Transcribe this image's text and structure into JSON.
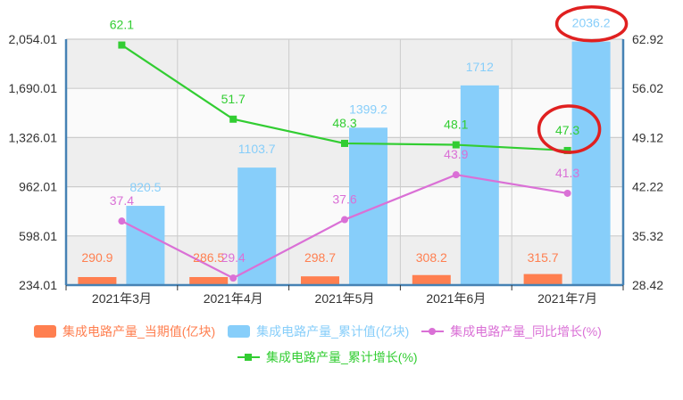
{
  "colors": {
    "current": "#ff7f50",
    "cumulative": "#87cefa",
    "yoy": "#da70d6",
    "cum_growth": "#32cd32",
    "axis": "#4682b4",
    "grid": "#cccccc",
    "band_dark": "#eeeeee",
    "band_light": "#fafafa",
    "highlight": "#e02020",
    "tick_text": "#333333"
  },
  "chart_data": {
    "type": "bar",
    "title": "",
    "categories": [
      "2021年3月",
      "2021年4月",
      "2021年5月",
      "2021年6月",
      "2021年7月"
    ],
    "series": [
      {
        "name": "集成电路产量_当期值(亿块)",
        "type": "bar",
        "axis": "left",
        "values": [
          290.9,
          286.5,
          298.7,
          308.2,
          315.7
        ]
      },
      {
        "name": "集成电路产量_累计值(亿块)",
        "type": "bar",
        "axis": "left",
        "values": [
          820.5,
          1103.7,
          1399.2,
          1712,
          2036.2
        ]
      },
      {
        "name": "集成电路产量_同比增长(%)",
        "type": "line",
        "axis": "right",
        "marker": "circle",
        "values": [
          37.4,
          29.4,
          37.6,
          43.9,
          41.3
        ]
      },
      {
        "name": "集成电路产量_累计增长(%)",
        "type": "line",
        "axis": "right",
        "marker": "square",
        "values": [
          62.1,
          51.7,
          48.3,
          48.1,
          47.3
        ]
      }
    ],
    "y_left": {
      "ylim": [
        234.01,
        2054.01
      ],
      "ticks": [
        "234.01",
        "598.01",
        "962.01",
        "1,326.01",
        "1,690.01",
        "2,054.01"
      ]
    },
    "y_right": {
      "ylim": [
        28.42,
        62.92
      ],
      "ticks": [
        "28.42",
        "35.32",
        "42.22",
        "49.12",
        "56.02",
        "62.92"
      ]
    },
    "xlabel": "",
    "ylabel": "",
    "grid": true,
    "legend_position": "bottom",
    "annotations": [
      {
        "type": "ellipse",
        "target": "2036.2 label (累计值 2021年7月)",
        "color": "#e02020"
      },
      {
        "type": "ellipse",
        "target": "47.3 label (累计增长 2021年7月)",
        "color": "#e02020"
      }
    ]
  },
  "legend": {
    "items": [
      {
        "label": "集成电路产量_当期值(亿块)",
        "kind": "rect",
        "color": "#ff7f50"
      },
      {
        "label": "集成电路产量_累计值(亿块)",
        "kind": "rect",
        "color": "#87cefa"
      },
      {
        "label": "集成电路产量_同比增长(%)",
        "kind": "line-circle",
        "color": "#da70d6"
      },
      {
        "label": "集成电路产量_累计增长(%)",
        "kind": "line-square",
        "color": "#32cd32"
      }
    ]
  }
}
